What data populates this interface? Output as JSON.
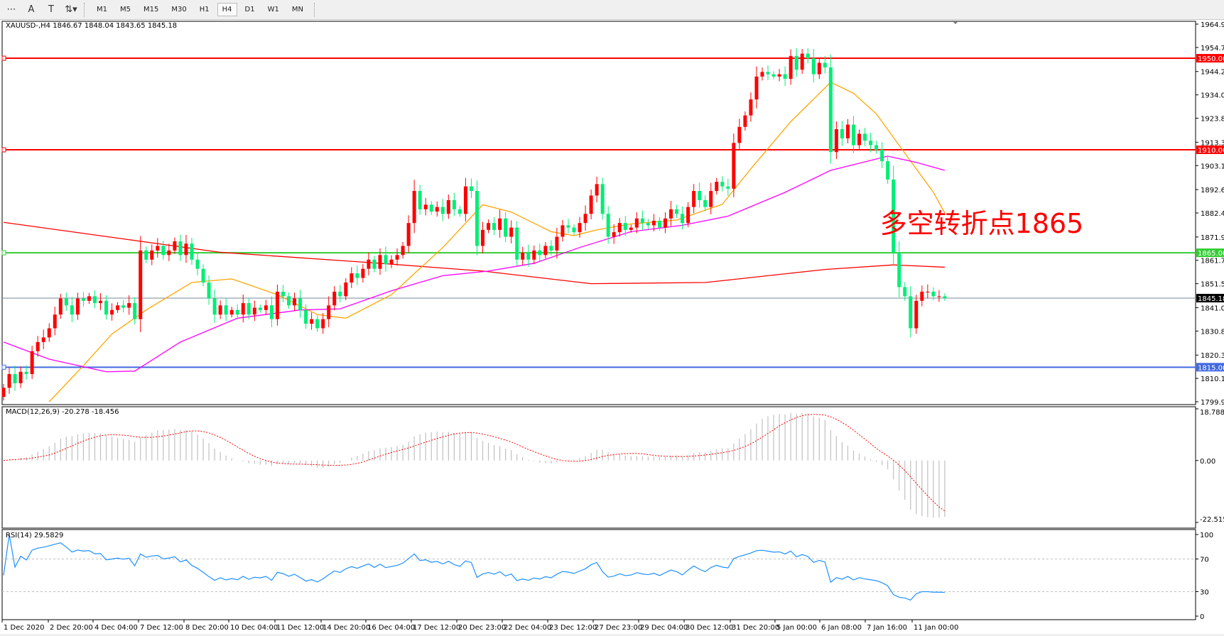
{
  "toolbar": {
    "tools": [
      {
        "name": "period-separator-tool",
        "glyph": "⋯"
      },
      {
        "name": "text-tool",
        "glyph": "A"
      },
      {
        "name": "text-label-tool",
        "glyph": "T"
      },
      {
        "name": "arrows-tool",
        "glyph": "⇅▾"
      }
    ],
    "timeframes": [
      "M1",
      "M5",
      "M15",
      "M30",
      "H1",
      "H4",
      "D1",
      "W1",
      "MN"
    ],
    "active_timeframe": "H4"
  },
  "main": {
    "header": "XAUUSD-,H4  1846.67 1848.04 1843.65 1845.18",
    "annotation": "多空转折点1865",
    "price_ticks": [
      "1964.90",
      "1954.70",
      "1944.20",
      "1934.00",
      "1923.80",
      "1913.30",
      "1903.10",
      "1892.60",
      "1882.40",
      "1871.90",
      "1861.70",
      "1851.50",
      "1841.00",
      "1830.80",
      "1820.30",
      "1810.10",
      "1799.90"
    ],
    "levels": [
      {
        "price": 1950.0,
        "label": "1950.00",
        "color": "#ff0000"
      },
      {
        "price": 1910.0,
        "label": "1910.00",
        "color": "#ff0000"
      },
      {
        "price": 1865.0,
        "label": "1865.00",
        "color": "#32cd32"
      },
      {
        "price": 1815.0,
        "label": "1815.00",
        "color": "#4169e1"
      }
    ],
    "current_price": {
      "price": 1845.18,
      "label": "1845.18",
      "color": "#778899"
    }
  },
  "chart_data": {
    "type": "candlestick",
    "symbol": "XAUUSD-",
    "timeframe": "H4",
    "ylim": [
      1799.9,
      1964.9
    ],
    "bull_color": "#ff0000",
    "bear_color": "#00ee76",
    "close": [
      1806,
      1812,
      1808,
      1813,
      1812,
      1822,
      1826,
      1828,
      1832,
      1838,
      1845,
      1842,
      1838,
      1845,
      1844,
      1846,
      1843,
      1844,
      1838,
      1840,
      1842,
      1841,
      1843,
      1836,
      1866,
      1862,
      1866,
      1868,
      1864,
      1866,
      1870,
      1864,
      1869,
      1862,
      1858,
      1852,
      1845,
      1838,
      1842,
      1838,
      1840,
      1838,
      1843,
      1838,
      1841,
      1840,
      1842,
      1836,
      1848,
      1846,
      1842,
      1845,
      1840,
      1834,
      1836,
      1832,
      1836,
      1842,
      1848,
      1846,
      1852,
      1856,
      1854,
      1858,
      1862,
      1858,
      1864,
      1860,
      1862,
      1864,
      1868,
      1878,
      1892,
      1884,
      1886,
      1883,
      1885,
      1882,
      1888,
      1884,
      1882,
      1894,
      1892,
      1868,
      1875,
      1878,
      1875,
      1880,
      1872,
      1876,
      1862,
      1865,
      1862,
      1866,
      1864,
      1868,
      1866,
      1872,
      1877,
      1876,
      1874,
      1878,
      1882,
      1890,
      1895,
      1882,
      1872,
      1874,
      1878,
      1875,
      1876,
      1880,
      1878,
      1877,
      1879,
      1876,
      1880,
      1884,
      1882,
      1878,
      1885,
      1892,
      1888,
      1885,
      1892,
      1896,
      1894,
      1893,
      1913,
      1920,
      1925,
      1932,
      1942,
      1944,
      1943,
      1942,
      1943,
      1941,
      1951,
      1945,
      1952,
      1950,
      1943,
      1948,
      1946,
      1909,
      1919,
      1915,
      1921,
      1912,
      1917,
      1914,
      1912,
      1910,
      1905,
      1897,
      1865,
      1850,
      1846,
      1832,
      1844,
      1848,
      1848,
      1846,
      1846,
      1845.18
    ],
    "ma_lines": [
      {
        "color": "#ff0000",
        "points": [
          [
            0,
            1878.3
          ],
          [
            38,
            1865.2
          ],
          [
            66,
            1860.4
          ],
          [
            84,
            1857
          ],
          [
            103,
            1851.5
          ],
          [
            123,
            1852
          ],
          [
            144,
            1857.7
          ],
          [
            156,
            1859.7
          ],
          [
            165,
            1858.7
          ]
        ]
      },
      {
        "color": "#ffa500",
        "points": [
          [
            8,
            1799.9
          ],
          [
            14,
            1815.7
          ],
          [
            19,
            1829.5
          ],
          [
            25,
            1840
          ],
          [
            33,
            1852
          ],
          [
            40,
            1853.6
          ],
          [
            48,
            1846.7
          ],
          [
            55,
            1838
          ],
          [
            60,
            1836.4
          ],
          [
            68,
            1846.7
          ],
          [
            77,
            1867.3
          ],
          [
            84,
            1886
          ],
          [
            89,
            1882.8
          ],
          [
            96,
            1874.2
          ],
          [
            100,
            1872.5
          ],
          [
            104,
            1875
          ],
          [
            110,
            1877.6
          ],
          [
            118,
            1879.3
          ],
          [
            126,
            1886.2
          ],
          [
            131,
            1901.7
          ],
          [
            138,
            1922.3
          ],
          [
            145,
            1939.5
          ],
          [
            149,
            1934.7
          ],
          [
            153,
            1925.7
          ],
          [
            158,
            1908.5
          ],
          [
            163,
            1891.4
          ],
          [
            165,
            1882.4
          ]
        ]
      },
      {
        "color": "#ff00ff",
        "points": [
          [
            0,
            1826
          ],
          [
            8,
            1818.5
          ],
          [
            18,
            1813
          ],
          [
            23,
            1813.3
          ],
          [
            31,
            1826
          ],
          [
            41,
            1836.4
          ],
          [
            52,
            1840
          ],
          [
            59,
            1840.5
          ],
          [
            68,
            1848.4
          ],
          [
            77,
            1855
          ],
          [
            85,
            1857
          ],
          [
            93,
            1860.4
          ],
          [
            101,
            1867.3
          ],
          [
            110,
            1874.2
          ],
          [
            119,
            1877
          ],
          [
            127,
            1881
          ],
          [
            137,
            1891.4
          ],
          [
            145,
            1901
          ],
          [
            155,
            1907.2
          ],
          [
            160,
            1904.5
          ],
          [
            165,
            1901
          ]
        ]
      }
    ],
    "time_labels": [
      "1 Dec 2020",
      "2 Dec 20:00",
      "4 Dec 04:00",
      "7 Dec 12:00",
      "8 Dec 20:00",
      "10 Dec 04:00",
      "11 Dec 12:00",
      "14 Dec 20:00",
      "16 Dec 04:00",
      "17 Dec 12:00",
      "20 Dec 23:00",
      "22 Dec 04:00",
      "23 Dec 12:00",
      "27 Dec 23:00",
      "29 Dec 04:00",
      "30 Dec 12:00",
      "31 Dec 20:00",
      "5 Jan 00:00",
      "6 Jan 08:00",
      "7 Jan 16:00",
      "11 Jan 00:00"
    ],
    "macd": {
      "header": "MACD(12,26,9) -20.278 -18.456",
      "ylim": [
        -22.515,
        18.788
      ],
      "ticks": [
        "18.788",
        "0.00",
        "-22.515"
      ],
      "hist_color": "#c0c0c0",
      "signal_color": "#ff0000"
    },
    "rsi": {
      "header": "RSI(14) 29.5829",
      "ylim": [
        0,
        100
      ],
      "levels": [
        70,
        30
      ],
      "ticks": [
        "100",
        "70",
        "30",
        "0"
      ],
      "color": "#1e90ff"
    }
  }
}
